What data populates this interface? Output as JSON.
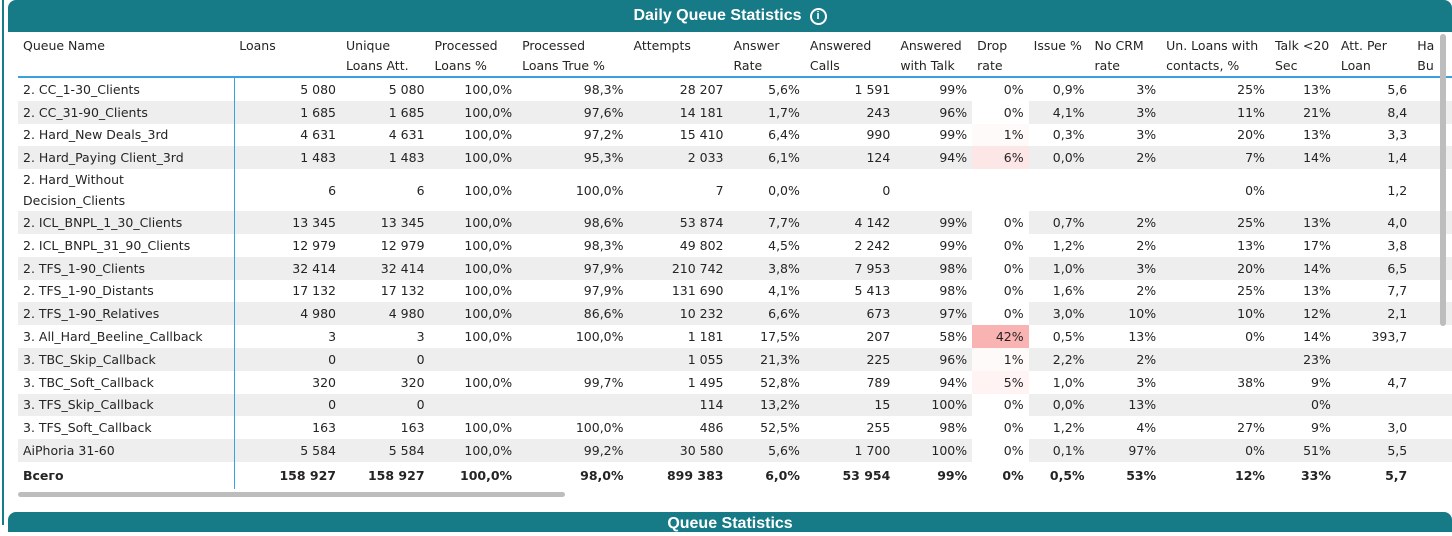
{
  "title": "Daily Queue Statistics",
  "next_title": "Queue Statistics",
  "accent": "#167a87",
  "columns": [
    "Queue Name",
    "Loans",
    "Unique\nLoans Att.",
    "Processed\nLoans %",
    "Processed\nLoans True %",
    "Attempts",
    "Answer\nRate",
    "Answered\nCalls",
    "Answered\nwith Talk",
    "Drop\nrate",
    "Issue %",
    "No CRM\nrate",
    "Un. Loans with\ncontacts, %",
    "Talk <20\nSec",
    "Att. Per\nLoan",
    "Ha\nBu"
  ],
  "rows": [
    [
      "2. CC_1-30_Clients",
      "5 080",
      "5 080",
      "100,0%",
      "98,3%",
      "28 207",
      "5,6%",
      "1 591",
      "99%",
      "0%",
      "0,9%",
      "3%",
      "25%",
      "13%",
      "5,6",
      ""
    ],
    [
      "2. CC_31-90_Clients",
      "1 685",
      "1 685",
      "100,0%",
      "97,6%",
      "14 181",
      "1,7%",
      "243",
      "96%",
      "0%",
      "4,1%",
      "3%",
      "11%",
      "21%",
      "8,4",
      ""
    ],
    [
      "2. Hard_New Deals_3rd",
      "4 631",
      "4 631",
      "100,0%",
      "97,2%",
      "15 410",
      "6,4%",
      "990",
      "99%",
      "1%",
      "0,3%",
      "3%",
      "20%",
      "13%",
      "3,3",
      ""
    ],
    [
      "2. Hard_Paying Client_3rd",
      "1 483",
      "1 483",
      "100,0%",
      "95,3%",
      "2 033",
      "6,1%",
      "124",
      "94%",
      "6%",
      "0,0%",
      "2%",
      "7%",
      "14%",
      "1,4",
      ""
    ],
    [
      "2. Hard_Without Decision_Clients",
      "6",
      "6",
      "100,0%",
      "100,0%",
      "7",
      "0,0%",
      "0",
      "",
      "",
      "",
      "",
      "0%",
      "",
      "1,2",
      ""
    ],
    [
      "2. ICL_BNPL_1_30_Clients",
      "13 345",
      "13 345",
      "100,0%",
      "98,6%",
      "53 874",
      "7,7%",
      "4 142",
      "99%",
      "0%",
      "0,7%",
      "2%",
      "25%",
      "13%",
      "4,0",
      ""
    ],
    [
      "2. ICL_BNPL_31_90_Clients",
      "12 979",
      "12 979",
      "100,0%",
      "98,3%",
      "49 802",
      "4,5%",
      "2 242",
      "99%",
      "0%",
      "1,2%",
      "2%",
      "13%",
      "17%",
      "3,8",
      ""
    ],
    [
      "2. TFS_1-90_Clients",
      "32 414",
      "32 414",
      "100,0%",
      "97,9%",
      "210 742",
      "3,8%",
      "7 953",
      "98%",
      "0%",
      "1,0%",
      "3%",
      "20%",
      "14%",
      "6,5",
      ""
    ],
    [
      "2. TFS_1-90_Distants",
      "17 132",
      "17 132",
      "100,0%",
      "97,9%",
      "131 690",
      "4,1%",
      "5 413",
      "98%",
      "0%",
      "1,6%",
      "2%",
      "25%",
      "13%",
      "7,7",
      ""
    ],
    [
      "2. TFS_1-90_Relatives",
      "4 980",
      "4 980",
      "100,0%",
      "86,6%",
      "10 232",
      "6,6%",
      "673",
      "97%",
      "0%",
      "3,0%",
      "10%",
      "10%",
      "12%",
      "2,1",
      ""
    ],
    [
      "3. All_Hard_Beeline_Callback",
      "3",
      "3",
      "100,0%",
      "100,0%",
      "1 181",
      "17,5%",
      "207",
      "58%",
      "42%",
      "0,5%",
      "13%",
      "0%",
      "14%",
      "393,7",
      ""
    ],
    [
      "3. TBC_Skip_Callback",
      "0",
      "0",
      "",
      "",
      "1 055",
      "21,3%",
      "225",
      "96%",
      "1%",
      "2,2%",
      "2%",
      "",
      "23%",
      "",
      ""
    ],
    [
      "3. TBC_Soft_Callback",
      "320",
      "320",
      "100,0%",
      "99,7%",
      "1 495",
      "52,8%",
      "789",
      "94%",
      "5%",
      "1,0%",
      "3%",
      "38%",
      "9%",
      "4,7",
      ""
    ],
    [
      "3. TFS_Skip_Callback",
      "0",
      "0",
      "",
      "",
      "114",
      "13,2%",
      "15",
      "100%",
      "0%",
      "0,0%",
      "13%",
      "",
      "0%",
      "",
      ""
    ],
    [
      "3. TFS_Soft_Callback",
      "163",
      "163",
      "100,0%",
      "100,0%",
      "486",
      "52,5%",
      "255",
      "98%",
      "0%",
      "1,2%",
      "4%",
      "27%",
      "9%",
      "3,0",
      ""
    ],
    [
      "AiPhoria 31-60",
      "5 584",
      "5 584",
      "100,0%",
      "99,2%",
      "30 580",
      "5,6%",
      "1 700",
      "100%",
      "0%",
      "0,1%",
      "97%",
      "0%",
      "51%",
      "5,5",
      ""
    ]
  ],
  "drop_colors": {
    "42%": "#f9b3b3",
    "6%": "#fde6e6",
    "5%": "#fff3f3",
    "1%": "#fffafa"
  },
  "total": [
    "Всего",
    "158 927",
    "158 927",
    "100,0%",
    "98,0%",
    "899 383",
    "6,0%",
    "53 954",
    "99%",
    "0%",
    "0,5%",
    "53%",
    "12%",
    "33%",
    "5,7",
    ""
  ]
}
